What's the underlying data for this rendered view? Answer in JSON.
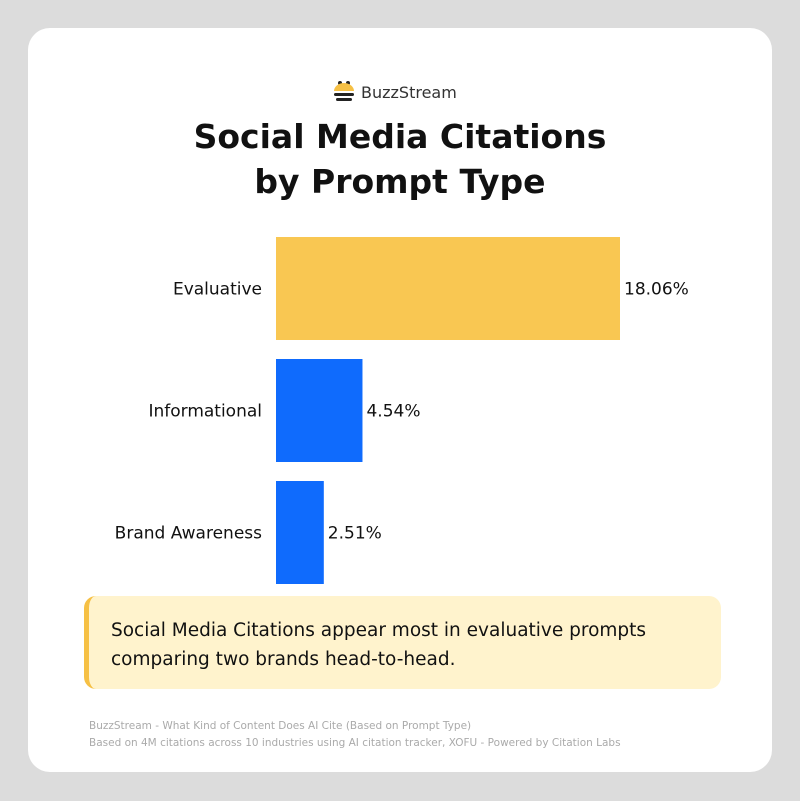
{
  "brand": {
    "logo_text": "BuzzStream",
    "logo_icon": "bee-icon"
  },
  "chart_data": {
    "type": "bar",
    "orientation": "horizontal",
    "title": "Social Media Citations by Prompt Type",
    "title_lines": [
      "Social Media Citations",
      "by Prompt Type"
    ],
    "categories": [
      "Evaluative",
      "Informational",
      "Brand Awareness"
    ],
    "values": [
      18.06,
      4.54,
      2.51
    ],
    "value_labels": [
      "18.06%",
      "4.54%",
      "2.51%"
    ],
    "colors": [
      "#f9c752",
      "#0f6bfd",
      "#0f6bfd"
    ],
    "xlim": [
      0,
      18.06
    ],
    "grid": false
  },
  "callout": {
    "text": "Social Media Citations appear most in evaluative prompts comparing two brands head-to-head.",
    "accent": "#f6c044",
    "background": "#fff3cd"
  },
  "footer": {
    "line1": "BuzzStream - What Kind of Content Does AI Cite (Based on Prompt Type)",
    "line2": "Based on 4M citations across 10 industries using AI citation tracker, XOFU - Powered by Citation Labs"
  }
}
